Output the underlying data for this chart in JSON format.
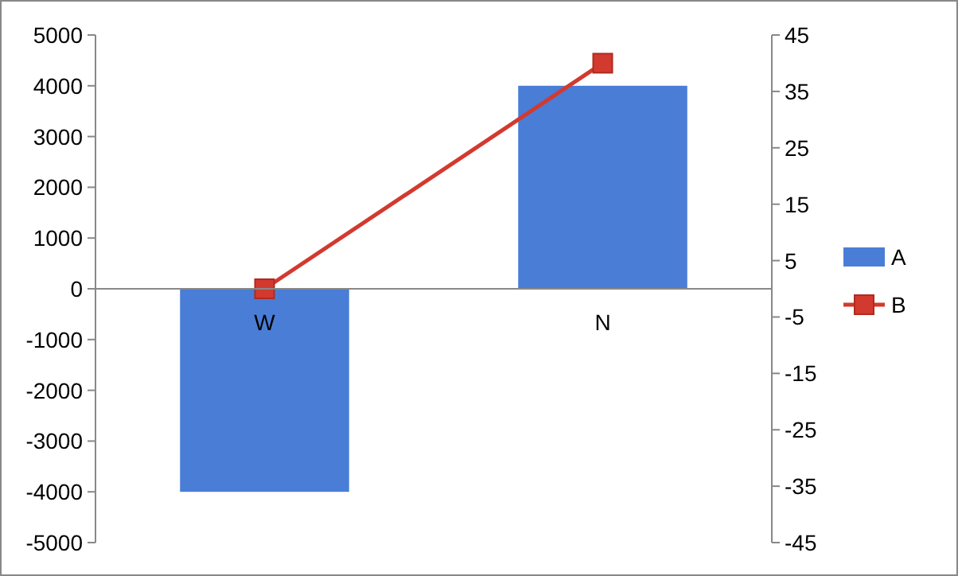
{
  "chart_data": {
    "type": "bar",
    "categories": [
      "W",
      "N"
    ],
    "series": [
      {
        "name": "A",
        "color": "#4a7ed6",
        "values": [
          -4000,
          4000
        ]
      },
      {
        "name": "B",
        "type": "line",
        "axis": "y2",
        "color": "#d33a2f",
        "values": [
          0,
          40
        ]
      }
    ],
    "ylim": [
      -5000,
      5000
    ],
    "yticks": [
      -5000,
      -4000,
      -3000,
      -2000,
      -1000,
      0,
      1000,
      2000,
      3000,
      4000,
      5000
    ],
    "y2lim": [
      -45,
      45
    ],
    "y2ticks": [
      -45,
      -35,
      -25,
      -15,
      -5,
      5,
      15,
      25,
      35,
      45
    ],
    "grid": false,
    "legend": "right",
    "marker": "square",
    "line_style": "solid"
  }
}
